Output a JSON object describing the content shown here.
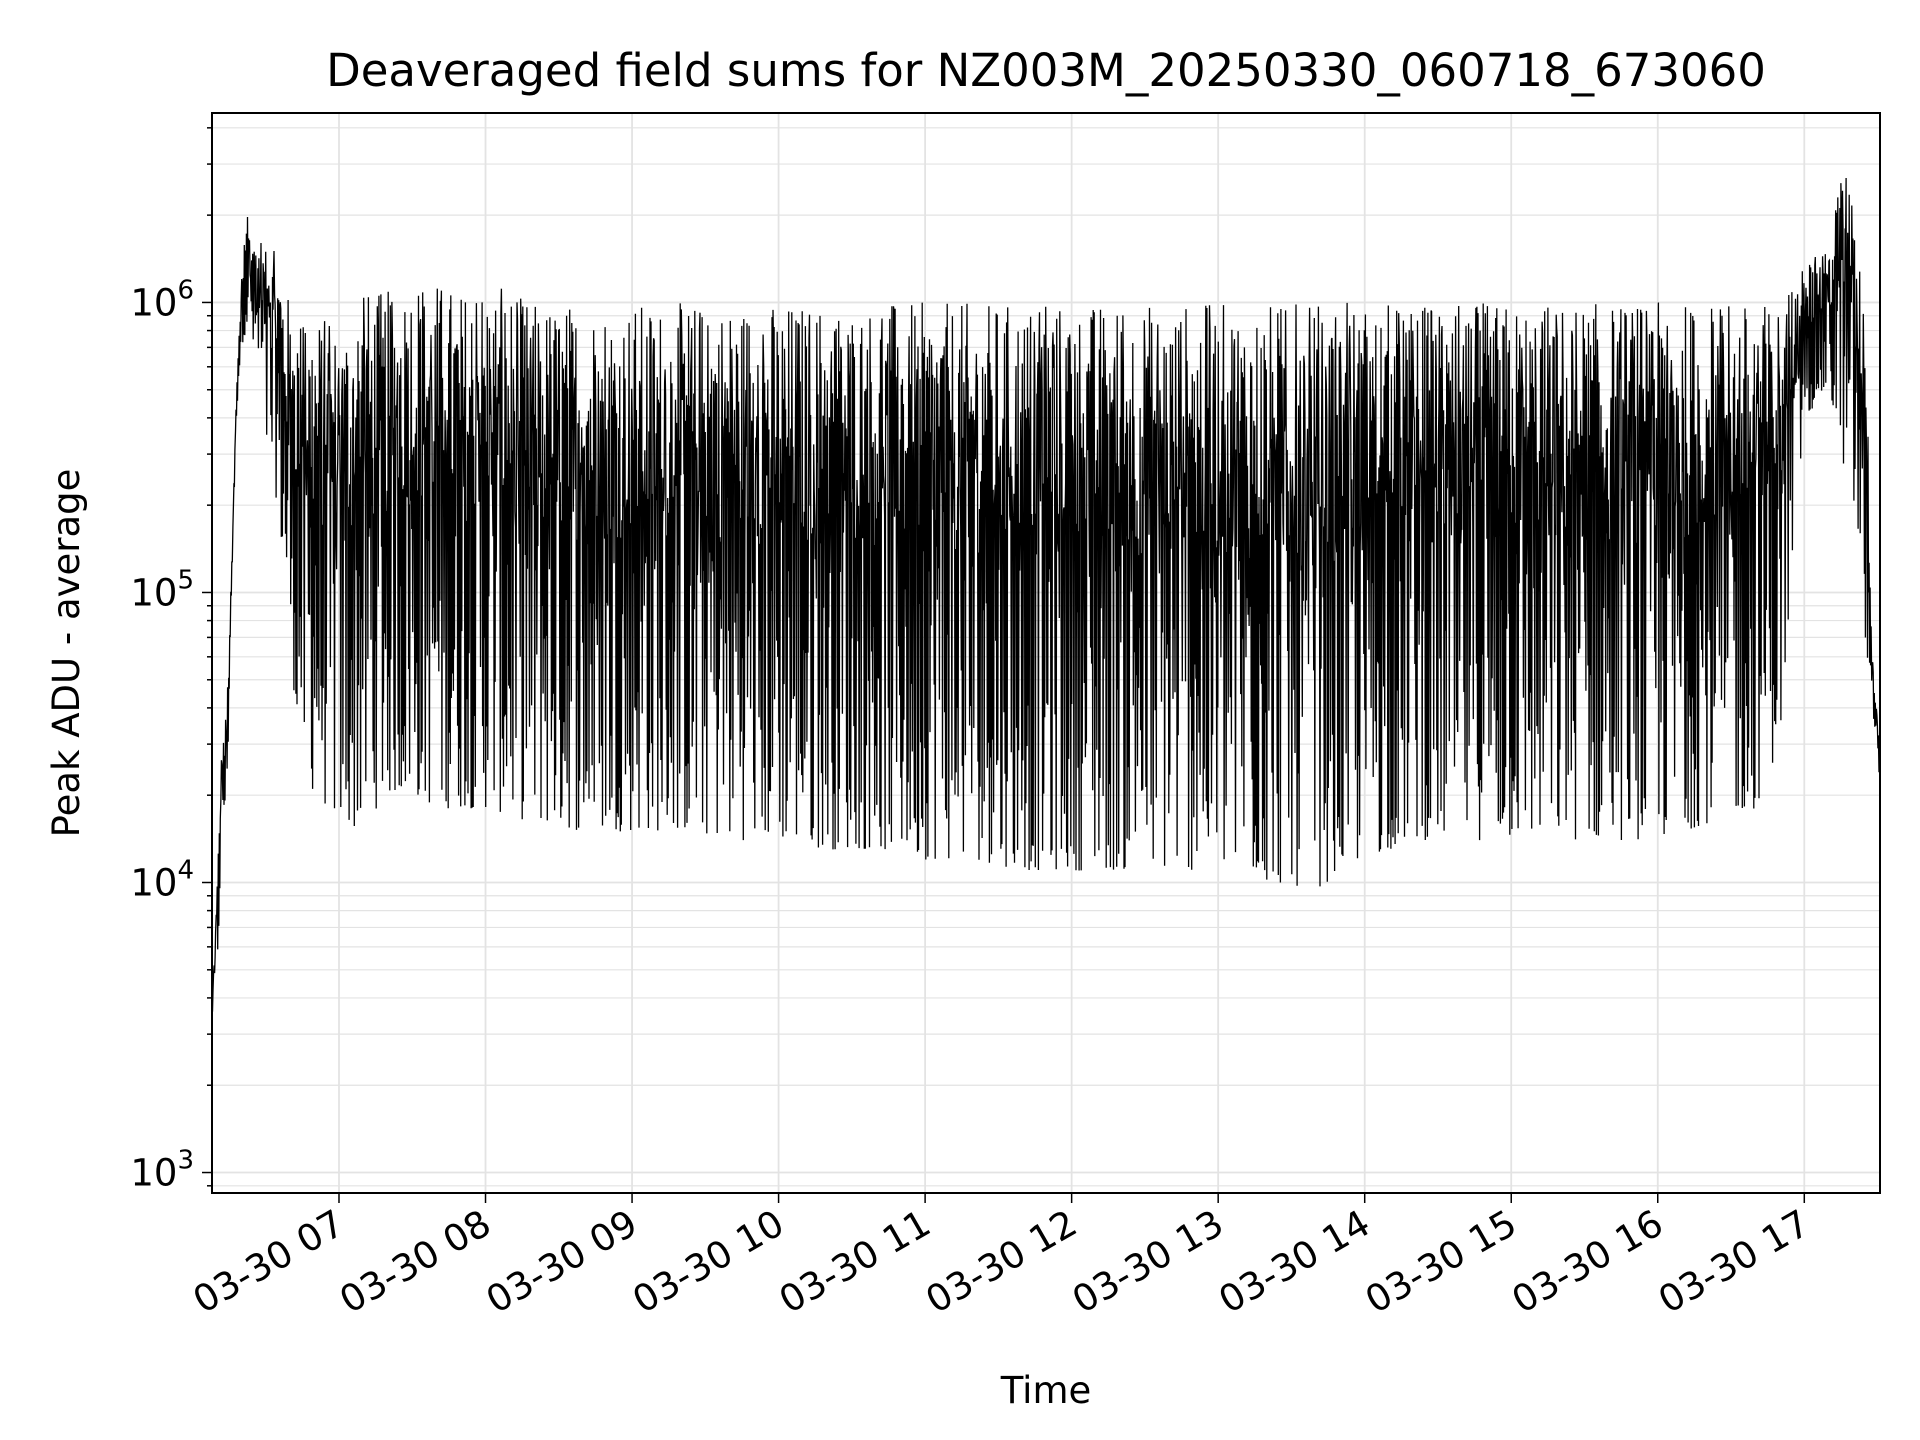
{
  "chart_data": {
    "type": "line",
    "title": "Deaveraged field sums for NZ003M_20250330_060718_673060",
    "xlabel": "Time",
    "ylabel": "Peak ADU - average",
    "yscale": "log",
    "ylim": [
      850,
      4500000
    ],
    "xlim": [
      "2025-03-30 06:08",
      "2025-03-30 17:31"
    ],
    "grid": true,
    "line_color": "#000000",
    "x_tick_labels": [
      "03-30 07",
      "03-30 08",
      "03-30 09",
      "03-30 10",
      "03-30 11",
      "03-30 12",
      "03-30 13",
      "03-30 14",
      "03-30 15",
      "03-30 16",
      "03-30 17"
    ],
    "y_ticks": [
      {
        "base": "10",
        "exp": "3",
        "value": 1000
      },
      {
        "base": "10",
        "exp": "4",
        "value": 10000
      },
      {
        "base": "10",
        "exp": "5",
        "value": 100000
      },
      {
        "base": "10",
        "exp": "6",
        "value": 1000000
      }
    ],
    "series": [
      {
        "x": [
          "06:08",
          "06:10",
          "06:12",
          "06:14",
          "06:16",
          "06:18",
          "06:20",
          "06:22",
          "06:24",
          "06:26",
          "06:28",
          "06:30",
          "06:35",
          "06:40",
          "06:45",
          "06:50",
          "06:52",
          "06:55",
          "07:00",
          "07:05",
          "07:10",
          "07:20",
          "07:30",
          "07:40",
          "07:50",
          "08:00",
          "08:20",
          "08:40",
          "09:00",
          "09:20",
          "09:40",
          "10:00",
          "10:20",
          "10:40",
          "11:00",
          "11:20",
          "11:40",
          "12:00",
          "12:20",
          "12:40",
          "13:00",
          "13:20",
          "13:40",
          "14:00",
          "14:20",
          "14:40",
          "15:00",
          "15:20",
          "15:40",
          "16:00",
          "16:20",
          "16:40",
          "16:50",
          "17:00",
          "17:10",
          "17:15",
          "17:20",
          "17:25",
          "17:28",
          "17:31"
        ],
        "y_high": [
          3500,
          10000,
          30000,
          40000,
          120000,
          500000,
          1200000,
          2300000,
          1800000,
          1500000,
          1600000,
          1800000,
          1400000,
          1000000,
          900000,
          950000,
          900000,
          900000,
          800000,
          1000000,
          1100000,
          1100000,
          1300000,
          1200000,
          1100000,
          1200000,
          1000000,
          1000000,
          1000000,
          1000000,
          1000000,
          1000000,
          1000000,
          1000000,
          1000000,
          1000000,
          1000000,
          1000000,
          1000000,
          1000000,
          1000000,
          1000000,
          1000000,
          1000000,
          1000000,
          1000000,
          1000000,
          1000000,
          1000000,
          1000000,
          1000000,
          1000000,
          1000000,
          1400000,
          1500000,
          3000000,
          2500000,
          1000000,
          60000,
          30000
        ],
        "y_low": [
          3500,
          4000,
          15000,
          17000,
          100000,
          400000,
          700000,
          800000,
          700000,
          600000,
          500000,
          300000,
          200000,
          60000,
          25000,
          20000,
          20000,
          18000,
          16000,
          15000,
          16000,
          20000,
          20000,
          18000,
          18000,
          18000,
          16000,
          15000,
          15000,
          15000,
          14000,
          14000,
          13000,
          13000,
          12000,
          12000,
          11000,
          11000,
          11000,
          11000,
          11000,
          10000,
          9500,
          12000,
          14000,
          14000,
          14000,
          14000,
          14000,
          14000,
          16000,
          18000,
          30000,
          400000,
          500000,
          300000,
          200000,
          60000,
          40000,
          22000
        ]
      }
    ]
  }
}
